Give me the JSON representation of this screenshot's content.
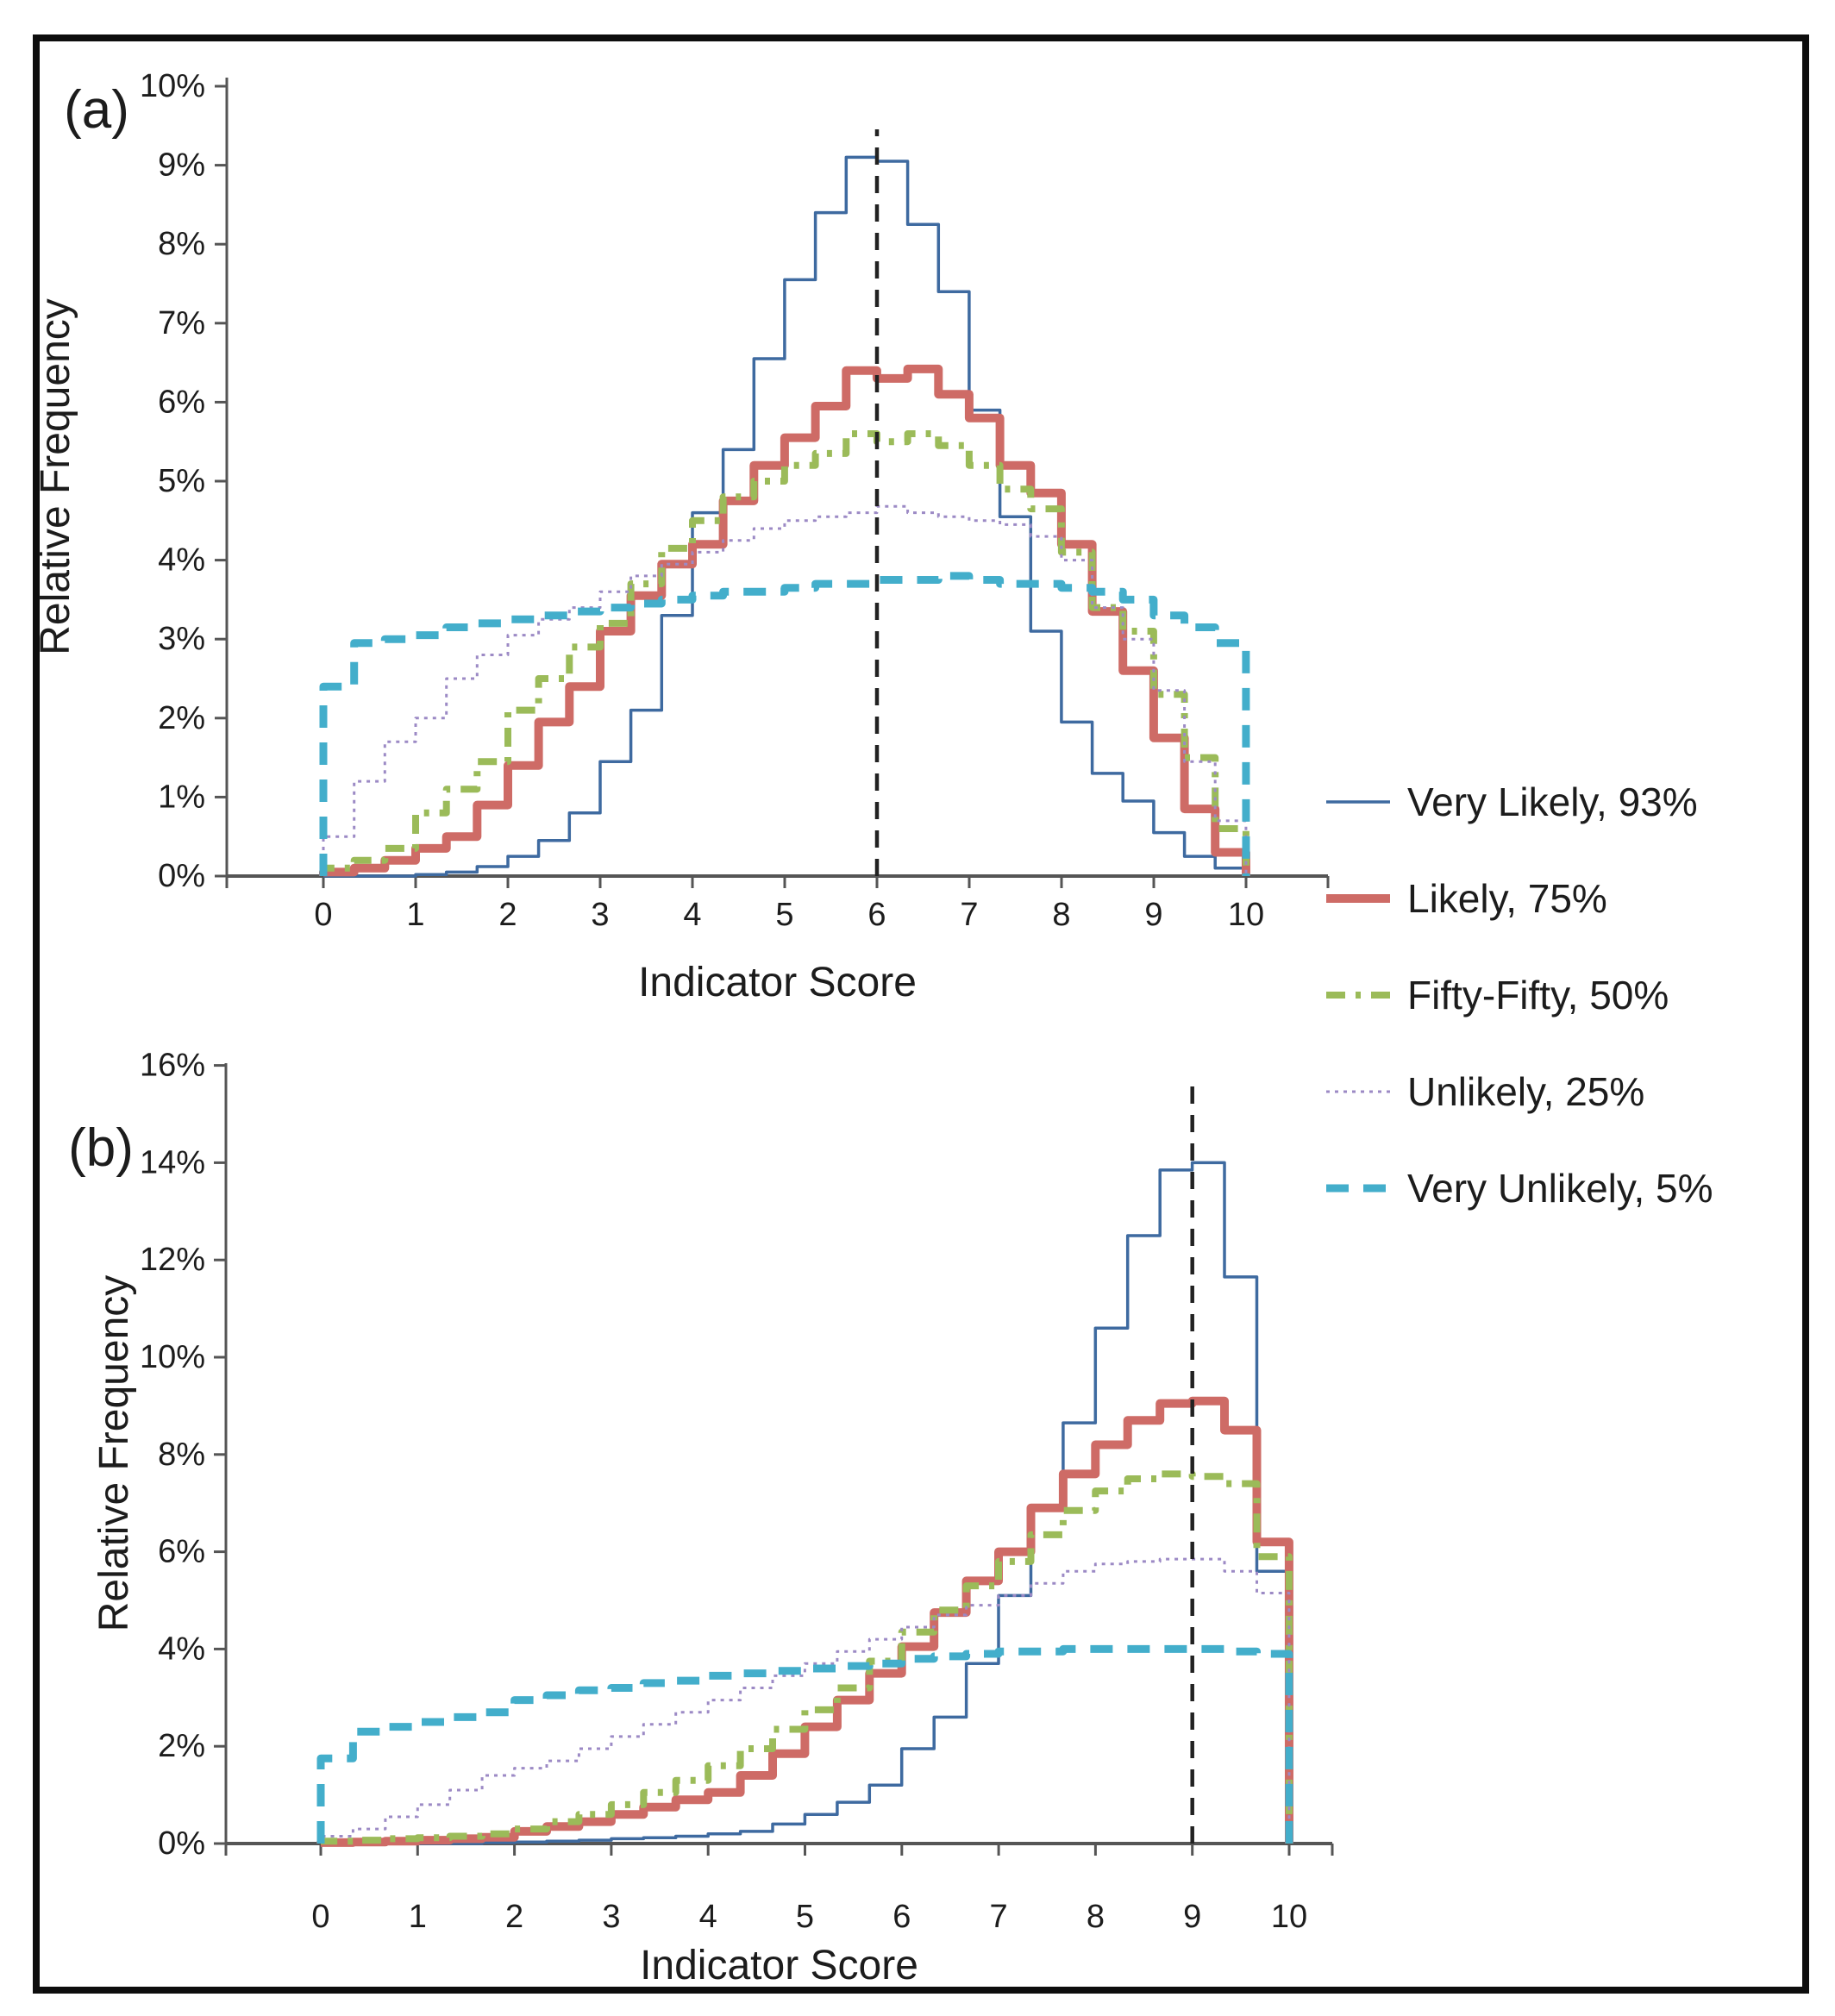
{
  "panel_a_tag": "(a)",
  "panel_b_tag": "(b)",
  "colors": {
    "very_likely": "#3e6aa0",
    "likely": "#ce6b66",
    "fifty_fifty": "#9bbb59",
    "unlikely": "#9c8ac5",
    "very_unlikely": "#43aecb",
    "reference_line": "#222222",
    "axis": "#555555",
    "frame": "#0d0d0d"
  },
  "line_styles": {
    "very_likely": {
      "width": 3.5,
      "dash": ""
    },
    "likely": {
      "width": 10,
      "dash": ""
    },
    "fifty_fifty": {
      "width": 8,
      "dash": "22 12 6 12"
    },
    "unlikely": {
      "width": 3,
      "dash": "4 6"
    },
    "very_unlikely": {
      "width": 9,
      "dash": "26 17"
    },
    "reference_line": {
      "width": 4.5,
      "dash": "20 13"
    }
  },
  "legend": {
    "items": [
      {
        "key": "very_likely",
        "label": "Very Likely, 93%"
      },
      {
        "key": "likely",
        "label": "Likely, 75%"
      },
      {
        "key": "fifty_fifty",
        "label": "Fifty-Fifty, 50%"
      },
      {
        "key": "unlikely",
        "label": "Unlikely, 25%"
      },
      {
        "key": "very_unlikely",
        "label": "Very Unlikely, 5%"
      }
    ]
  },
  "chart_data": [
    {
      "panel": "a",
      "type": "line",
      "subtype": "step-frequency-histogram",
      "title": "",
      "xlabel": "Indicator Score",
      "ylabel": "Relative Frequency",
      "xlim": [
        0,
        10
      ],
      "ylim_pct": [
        0,
        10
      ],
      "x_tick_labels": [
        "0",
        "1",
        "2",
        "3",
        "4",
        "5",
        "6",
        "7",
        "8",
        "9",
        "10"
      ],
      "y_tick_labels": [
        "0%",
        "1%",
        "2%",
        "3%",
        "4%",
        "5%",
        "6%",
        "7%",
        "8%",
        "9%",
        "10%"
      ],
      "bin_start": 0,
      "bin_width": 0.3333,
      "reference_line_x": 6,
      "grid": false,
      "legend_position": "right-of-figure",
      "series": [
        {
          "key": "very_likely",
          "name": "Very Likely, 93%",
          "values_pct": [
            0,
            0,
            0,
            0.02,
            0.05,
            0.12,
            0.25,
            0.45,
            0.8,
            1.45,
            2.1,
            3.3,
            4.6,
            5.4,
            6.55,
            7.55,
            8.4,
            9.1,
            9.05,
            8.25,
            7.4,
            5.9,
            4.55,
            3.1,
            1.95,
            1.3,
            0.95,
            0.55,
            0.25,
            0.1
          ]
        },
        {
          "key": "likely",
          "name": "Likely, 75%",
          "values_pct": [
            0.05,
            0.1,
            0.2,
            0.35,
            0.5,
            0.9,
            1.4,
            1.95,
            2.4,
            3.1,
            3.55,
            3.95,
            4.2,
            4.75,
            5.2,
            5.55,
            5.95,
            6.4,
            6.3,
            6.42,
            6.1,
            5.8,
            5.2,
            4.85,
            4.2,
            3.35,
            2.6,
            1.75,
            0.85,
            0.3
          ]
        },
        {
          "key": "fifty_fifty",
          "name": "Fifty-Fifty, 50%",
          "values_pct": [
            0.1,
            0.2,
            0.35,
            0.8,
            1.1,
            1.45,
            2.1,
            2.5,
            2.9,
            3.2,
            3.7,
            4.15,
            4.5,
            4.8,
            5.0,
            5.2,
            5.35,
            5.6,
            5.5,
            5.6,
            5.45,
            5.2,
            4.9,
            4.65,
            4.1,
            3.4,
            3.1,
            2.3,
            1.5,
            0.6
          ]
        },
        {
          "key": "unlikely",
          "name": "Unlikely, 25%",
          "values_pct": [
            0.5,
            1.2,
            1.7,
            2.0,
            2.5,
            2.8,
            3.05,
            3.25,
            3.4,
            3.6,
            3.8,
            3.95,
            4.1,
            4.25,
            4.4,
            4.5,
            4.55,
            4.6,
            4.68,
            4.6,
            4.55,
            4.5,
            4.45,
            4.3,
            4.0,
            3.4,
            3.0,
            2.35,
            1.45,
            0.7
          ]
        },
        {
          "key": "very_unlikely",
          "name": "Very Unlikely, 5%",
          "values_pct": [
            2.4,
            2.95,
            3.0,
            3.05,
            3.15,
            3.2,
            3.25,
            3.3,
            3.35,
            3.4,
            3.45,
            3.5,
            3.55,
            3.6,
            3.6,
            3.65,
            3.7,
            3.7,
            3.75,
            3.75,
            3.8,
            3.75,
            3.7,
            3.7,
            3.65,
            3.6,
            3.5,
            3.3,
            3.15,
            2.95
          ]
        }
      ]
    },
    {
      "panel": "b",
      "type": "line",
      "subtype": "step-frequency-histogram",
      "title": "",
      "xlabel": "Indicator Score",
      "ylabel": "Relative Frequency",
      "xlim": [
        0,
        10
      ],
      "ylim_pct": [
        0,
        16
      ],
      "x_tick_labels": [
        "0",
        "1",
        "2",
        "3",
        "4",
        "5",
        "6",
        "7",
        "8",
        "9",
        "10"
      ],
      "y_tick_labels": [
        "0%",
        "2%",
        "4%",
        "6%",
        "8%",
        "10%",
        "12%",
        "14%",
        "16%"
      ],
      "bin_start": 0,
      "bin_width": 0.3333,
      "reference_line_x": 9,
      "grid": false,
      "legend_position": "shared-with-panel-a",
      "series": [
        {
          "key": "very_likely",
          "name": "Very Likely, 93%",
          "values_pct": [
            0,
            0,
            0,
            0,
            0,
            0.02,
            0.03,
            0.05,
            0.07,
            0.1,
            0.12,
            0.15,
            0.2,
            0.25,
            0.4,
            0.6,
            0.85,
            1.2,
            1.95,
            2.6,
            3.7,
            5.1,
            6.95,
            8.65,
            10.6,
            12.5,
            13.85,
            14.0,
            11.65,
            5.6
          ]
        },
        {
          "key": "likely",
          "name": "Likely, 75%",
          "values_pct": [
            0.02,
            0.03,
            0.05,
            0.07,
            0.1,
            0.13,
            0.25,
            0.35,
            0.45,
            0.6,
            0.75,
            0.9,
            1.05,
            1.4,
            1.85,
            2.4,
            2.95,
            3.5,
            4.05,
            4.75,
            5.4,
            6.0,
            6.9,
            7.6,
            8.2,
            8.7,
            9.05,
            9.1,
            8.5,
            6.2
          ]
        },
        {
          "key": "fifty_fifty",
          "name": "Fifty-Fifty, 50%",
          "values_pct": [
            0.05,
            0.07,
            0.1,
            0.12,
            0.15,
            0.2,
            0.3,
            0.45,
            0.6,
            0.8,
            1.05,
            1.3,
            1.6,
            1.95,
            2.35,
            2.75,
            3.2,
            3.75,
            4.35,
            4.8,
            5.3,
            5.8,
            6.35,
            6.85,
            7.25,
            7.5,
            7.6,
            7.55,
            7.4,
            5.9
          ]
        },
        {
          "key": "unlikely",
          "name": "Unlikely, 25%",
          "values_pct": [
            0.15,
            0.3,
            0.55,
            0.8,
            1.1,
            1.4,
            1.55,
            1.7,
            1.95,
            2.2,
            2.45,
            2.7,
            2.95,
            3.2,
            3.45,
            3.7,
            3.95,
            4.2,
            4.45,
            4.7,
            4.9,
            5.1,
            5.35,
            5.6,
            5.75,
            5.8,
            5.85,
            5.85,
            5.6,
            5.15
          ]
        },
        {
          "key": "very_unlikely",
          "name": "Very Unlikely, 5%",
          "values_pct": [
            1.75,
            2.3,
            2.4,
            2.5,
            2.6,
            2.7,
            2.95,
            3.05,
            3.15,
            3.2,
            3.3,
            3.35,
            3.45,
            3.5,
            3.55,
            3.6,
            3.65,
            3.7,
            3.8,
            3.85,
            3.9,
            3.95,
            3.95,
            4.0,
            4.0,
            4.0,
            4.0,
            4.0,
            3.95,
            3.9
          ]
        }
      ]
    }
  ]
}
